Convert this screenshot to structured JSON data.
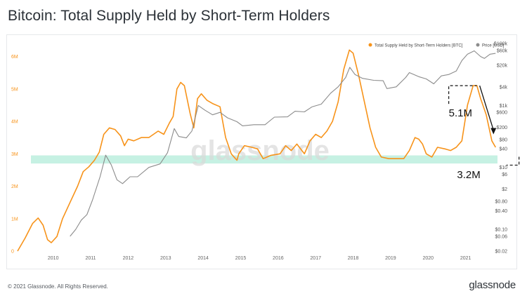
{
  "title": "Bitcoin: Total Supply Held by Short-Term Holders",
  "footer": {
    "copyright": "© 2021 Glassnode. All Rights Reserved.",
    "logo": "glassnode"
  },
  "watermark": "glassnode",
  "colors": {
    "supply": "#f7931a",
    "price": "#8c8c8c",
    "band": "#c6f1e3",
    "text": "#2b3137"
  },
  "chart_data": {
    "type": "line",
    "legend": {
      "position": "top-right",
      "items": [
        {
          "label": "Total Supply Held by Short-Term Holders [BTC]",
          "color": "#f7931a"
        },
        {
          "label": "Price [USD]",
          "color": "#8c8c8c"
        }
      ]
    },
    "x_axis": {
      "ticks": [
        "2010",
        "2011",
        "2012",
        "2013",
        "2014",
        "2015",
        "2016",
        "2017",
        "2018",
        "2019",
        "2020",
        "2021"
      ],
      "range": [
        2009.1,
        2021.9
      ]
    },
    "y_left": {
      "ticks": [
        "0",
        "1M",
        "2M",
        "3M",
        "4M",
        "5M",
        "6M"
      ],
      "range": [
        0,
        6400000
      ],
      "tick_color": "#f7931a"
    },
    "y_right": {
      "scale": "log",
      "range": [
        0.02,
        100000
      ],
      "ticks": [
        {
          "label": "$100k",
          "value": 100000
        },
        {
          "label": "$60k",
          "value": 60000
        },
        {
          "label": "$20k",
          "value": 20000
        },
        {
          "label": "$4k",
          "value": 4000
        },
        {
          "label": "$1k",
          "value": 1000
        },
        {
          "label": "$600",
          "value": 600
        },
        {
          "label": "$200",
          "value": 200
        },
        {
          "label": "$80",
          "value": 80
        },
        {
          "label": "$40",
          "value": 40
        },
        {
          "label": "$10",
          "value": 10
        },
        {
          "label": "$6",
          "value": 6
        },
        {
          "label": "$2",
          "value": 2
        },
        {
          "label": "$0.80",
          "value": 0.8
        },
        {
          "label": "$0.40",
          "value": 0.4
        },
        {
          "label": "$0.10",
          "value": 0.1
        },
        {
          "label": "$0.06",
          "value": 0.06
        },
        {
          "label": "$0.02",
          "value": 0.02
        }
      ]
    },
    "band": {
      "from": 2700000,
      "to": 2950000
    },
    "series": [
      {
        "name": "Total Supply Held by Short-Term Holders [BTC]",
        "axis": "left",
        "points": [
          [
            2009.1,
            0
          ],
          [
            2009.3,
            400000
          ],
          [
            2009.5,
            850000
          ],
          [
            2009.65,
            1020000
          ],
          [
            2009.78,
            800000
          ],
          [
            2009.9,
            350000
          ],
          [
            2010.0,
            260000
          ],
          [
            2010.15,
            450000
          ],
          [
            2010.3,
            1000000
          ],
          [
            2010.5,
            1500000
          ],
          [
            2010.7,
            2000000
          ],
          [
            2010.85,
            2450000
          ],
          [
            2011.0,
            2600000
          ],
          [
            2011.15,
            2800000
          ],
          [
            2011.28,
            3050000
          ],
          [
            2011.4,
            3600000
          ],
          [
            2011.55,
            3800000
          ],
          [
            2011.7,
            3750000
          ],
          [
            2011.85,
            3550000
          ],
          [
            2011.95,
            3250000
          ],
          [
            2012.05,
            3450000
          ],
          [
            2012.2,
            3400000
          ],
          [
            2012.4,
            3500000
          ],
          [
            2012.6,
            3500000
          ],
          [
            2012.85,
            3700000
          ],
          [
            2013.0,
            3600000
          ],
          [
            2013.15,
            3950000
          ],
          [
            2013.25,
            4150000
          ],
          [
            2013.35,
            5000000
          ],
          [
            2013.45,
            5200000
          ],
          [
            2013.55,
            5100000
          ],
          [
            2013.7,
            4250000
          ],
          [
            2013.8,
            3800000
          ],
          [
            2013.9,
            4700000
          ],
          [
            2014.0,
            4850000
          ],
          [
            2014.15,
            4650000
          ],
          [
            2014.3,
            4550000
          ],
          [
            2014.5,
            4450000
          ],
          [
            2014.65,
            3500000
          ],
          [
            2014.8,
            3000000
          ],
          [
            2014.95,
            2800000
          ],
          [
            2015.0,
            3000000
          ],
          [
            2015.15,
            3250000
          ],
          [
            2015.35,
            3200000
          ],
          [
            2015.5,
            3150000
          ],
          [
            2015.65,
            2850000
          ],
          [
            2015.85,
            2950000
          ],
          [
            2016.1,
            3000000
          ],
          [
            2016.25,
            3250000
          ],
          [
            2016.4,
            3100000
          ],
          [
            2016.55,
            3300000
          ],
          [
            2016.75,
            3000000
          ],
          [
            2016.9,
            3400000
          ],
          [
            2017.05,
            3600000
          ],
          [
            2017.2,
            3500000
          ],
          [
            2017.35,
            3700000
          ],
          [
            2017.5,
            4000000
          ],
          [
            2017.65,
            4600000
          ],
          [
            2017.8,
            5600000
          ],
          [
            2017.95,
            6200000
          ],
          [
            2018.05,
            6100000
          ],
          [
            2018.2,
            5400000
          ],
          [
            2018.35,
            4600000
          ],
          [
            2018.5,
            3800000
          ],
          [
            2018.65,
            3200000
          ],
          [
            2018.8,
            2900000
          ],
          [
            2019.0,
            2850000
          ],
          [
            2019.2,
            2850000
          ],
          [
            2019.4,
            2850000
          ],
          [
            2019.55,
            3100000
          ],
          [
            2019.7,
            3500000
          ],
          [
            2019.8,
            3450000
          ],
          [
            2019.9,
            3300000
          ],
          [
            2020.0,
            3000000
          ],
          [
            2020.15,
            2900000
          ],
          [
            2020.3,
            3200000
          ],
          [
            2020.5,
            3150000
          ],
          [
            2020.65,
            3100000
          ],
          [
            2020.8,
            3200000
          ],
          [
            2020.95,
            3400000
          ],
          [
            2021.1,
            4500000
          ],
          [
            2021.25,
            5100000
          ],
          [
            2021.35,
            5100000
          ],
          [
            2021.45,
            4700000
          ],
          [
            2021.6,
            4200000
          ],
          [
            2021.75,
            3400000
          ],
          [
            2021.85,
            3200000
          ]
        ]
      },
      {
        "name": "Price [USD]",
        "axis": "right",
        "points": [
          [
            2010.5,
            0.06
          ],
          [
            2010.65,
            0.1
          ],
          [
            2010.8,
            0.2
          ],
          [
            2010.95,
            0.3
          ],
          [
            2011.1,
            0.9
          ],
          [
            2011.3,
            5
          ],
          [
            2011.45,
            25
          ],
          [
            2011.6,
            12
          ],
          [
            2011.75,
            4
          ],
          [
            2011.9,
            3
          ],
          [
            2012.1,
            5
          ],
          [
            2012.3,
            5
          ],
          [
            2012.6,
            10
          ],
          [
            2012.9,
            13
          ],
          [
            2013.1,
            30
          ],
          [
            2013.28,
            180
          ],
          [
            2013.4,
            100
          ],
          [
            2013.6,
            90
          ],
          [
            2013.75,
            150
          ],
          [
            2013.92,
            1000
          ],
          [
            2014.1,
            700
          ],
          [
            2014.3,
            500
          ],
          [
            2014.5,
            600
          ],
          [
            2014.7,
            400
          ],
          [
            2014.95,
            300
          ],
          [
            2015.1,
            220
          ],
          [
            2015.4,
            240
          ],
          [
            2015.7,
            240
          ],
          [
            2015.95,
            420
          ],
          [
            2016.3,
            430
          ],
          [
            2016.5,
            650
          ],
          [
            2016.75,
            620
          ],
          [
            2016.95,
            900
          ],
          [
            2017.2,
            1100
          ],
          [
            2017.45,
            2500
          ],
          [
            2017.65,
            4000
          ],
          [
            2017.85,
            8000
          ],
          [
            2017.96,
            17000
          ],
          [
            2018.1,
            10000
          ],
          [
            2018.3,
            7500
          ],
          [
            2018.6,
            6500
          ],
          [
            2018.85,
            6300
          ],
          [
            2018.95,
            3500
          ],
          [
            2019.2,
            4000
          ],
          [
            2019.45,
            8000
          ],
          [
            2019.55,
            11500
          ],
          [
            2019.8,
            8500
          ],
          [
            2020.0,
            7200
          ],
          [
            2020.2,
            5000
          ],
          [
            2020.4,
            9000
          ],
          [
            2020.6,
            10000
          ],
          [
            2020.8,
            13000
          ],
          [
            2020.95,
            28000
          ],
          [
            2021.1,
            45000
          ],
          [
            2021.28,
            58000
          ],
          [
            2021.45,
            38000
          ],
          [
            2021.55,
            33000
          ],
          [
            2021.7,
            45000
          ],
          [
            2021.85,
            48000
          ]
        ]
      }
    ],
    "annotations": [
      {
        "text": "5.1M",
        "x": 2020.45,
        "y": 4300000
      },
      {
        "text": "3.2M",
        "x": 2020.45,
        "y": 2400000
      }
    ]
  }
}
